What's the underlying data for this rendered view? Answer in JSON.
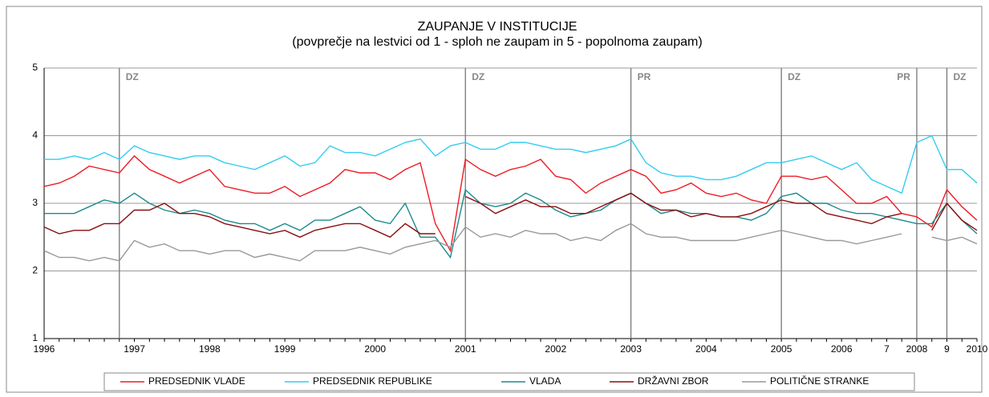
{
  "chart_data": {
    "type": "line",
    "title": "ZAUPANJE V INSTITUCIJE",
    "subtitle": "(povprečje na lestvici od 1 - sploh ne zaupam in 5 - popolnoma zaupam)",
    "categories": [
      "1996",
      null,
      null,
      null,
      null,
      null,
      "1997",
      null,
      null,
      null,
      null,
      "1998",
      null,
      null,
      null,
      null,
      "1999",
      null,
      null,
      null,
      null,
      null,
      "2000",
      null,
      null,
      null,
      null,
      null,
      "2001",
      null,
      null,
      null,
      null,
      null,
      "2002",
      null,
      null,
      null,
      null,
      "2003",
      null,
      null,
      null,
      null,
      "2004",
      null,
      null,
      null,
      null,
      "2005",
      null,
      null,
      null,
      "2006",
      null,
      null,
      "7",
      null,
      "2008",
      null,
      "9",
      null,
      "2010"
    ],
    "series": [
      {
        "name": "PREDSEDNIK VLADE",
        "color": "#ee1c25",
        "values": [
          3.25,
          3.3,
          3.4,
          3.55,
          3.5,
          3.45,
          3.7,
          3.5,
          3.4,
          3.3,
          3.4,
          3.5,
          3.25,
          3.2,
          3.15,
          3.15,
          3.25,
          3.1,
          3.2,
          3.3,
          3.5,
          3.45,
          3.45,
          3.35,
          3.5,
          3.6,
          2.7,
          2.3,
          3.65,
          3.5,
          3.4,
          3.5,
          3.55,
          3.65,
          3.4,
          3.35,
          3.15,
          3.3,
          3.4,
          3.5,
          3.4,
          3.15,
          3.2,
          3.3,
          3.15,
          3.1,
          3.15,
          3.05,
          3.0,
          3.4,
          3.4,
          3.35,
          3.4,
          3.2,
          3.0,
          3.0,
          3.1,
          2.85,
          2.8,
          2.65,
          3.2,
          2.95,
          2.75
        ]
      },
      {
        "name": "PREDSEDNIK REPUBLIKE",
        "color": "#33ccf0",
        "values": [
          3.65,
          3.65,
          3.7,
          3.65,
          3.75,
          3.65,
          3.85,
          3.75,
          3.7,
          3.65,
          3.7,
          3.7,
          3.6,
          3.55,
          3.5,
          3.6,
          3.7,
          3.55,
          3.6,
          3.85,
          3.75,
          3.75,
          3.7,
          3.8,
          3.9,
          3.95,
          3.7,
          3.85,
          3.9,
          3.8,
          3.8,
          3.9,
          3.9,
          3.85,
          3.8,
          3.8,
          3.75,
          3.8,
          3.85,
          3.95,
          3.6,
          3.45,
          3.4,
          3.4,
          3.35,
          3.35,
          3.4,
          3.5,
          3.6,
          3.6,
          3.65,
          3.7,
          3.6,
          3.5,
          3.6,
          3.35,
          3.25,
          3.15,
          3.9,
          4.0,
          3.5,
          3.5,
          3.3
        ]
      },
      {
        "name": "VLADA",
        "color": "#1b8a8c",
        "values": [
          2.85,
          2.85,
          2.85,
          2.95,
          3.05,
          3.0,
          3.15,
          3.0,
          2.9,
          2.85,
          2.9,
          2.85,
          2.75,
          2.7,
          2.7,
          2.6,
          2.7,
          2.6,
          2.75,
          2.75,
          2.85,
          2.95,
          2.75,
          2.7,
          3.0,
          2.5,
          2.5,
          2.2,
          3.2,
          3.0,
          2.95,
          3.0,
          3.15,
          3.05,
          2.9,
          2.8,
          2.85,
          2.9,
          3.05,
          3.15,
          3.0,
          2.85,
          2.9,
          2.85,
          2.85,
          2.8,
          2.8,
          2.75,
          2.85,
          3.1,
          3.15,
          3.0,
          3.0,
          2.9,
          2.85,
          2.85,
          2.8,
          2.75,
          2.7,
          2.7,
          3.0,
          2.75,
          2.55
        ]
      },
      {
        "name": "DRŽAVNI ZBOR",
        "color": "#8b0d0d",
        "values": [
          2.65,
          2.55,
          2.6,
          2.6,
          2.7,
          2.7,
          2.9,
          2.9,
          3.0,
          2.85,
          2.85,
          2.8,
          2.7,
          2.65,
          2.6,
          2.55,
          2.6,
          2.5,
          2.6,
          2.65,
          2.7,
          2.7,
          2.6,
          2.5,
          2.7,
          2.55,
          2.55,
          null,
          3.1,
          3.0,
          2.85,
          2.95,
          3.05,
          2.95,
          2.95,
          2.85,
          2.85,
          2.95,
          3.05,
          3.15,
          3.0,
          2.9,
          2.9,
          2.8,
          2.85,
          2.8,
          2.8,
          2.85,
          2.95,
          3.05,
          3.0,
          3.0,
          2.85,
          2.8,
          2.75,
          2.7,
          2.8,
          2.85,
          null,
          2.6,
          3.0,
          2.75,
          2.6
        ]
      },
      {
        "name": "POLITIČNE STRANKE",
        "color": "#999999",
        "values": [
          2.3,
          2.2,
          2.2,
          2.15,
          2.2,
          2.15,
          2.45,
          2.35,
          2.4,
          2.3,
          2.3,
          2.25,
          2.3,
          2.3,
          2.2,
          2.25,
          2.2,
          2.15,
          2.3,
          2.3,
          2.3,
          2.35,
          2.3,
          2.25,
          2.35,
          2.4,
          2.45,
          2.35,
          2.65,
          2.5,
          2.55,
          2.5,
          2.6,
          2.55,
          2.55,
          2.45,
          2.5,
          2.45,
          2.6,
          2.7,
          2.55,
          2.5,
          2.5,
          2.45,
          2.45,
          2.45,
          2.45,
          2.5,
          2.55,
          2.6,
          2.55,
          2.5,
          2.45,
          2.45,
          2.4,
          2.45,
          2.5,
          2.55,
          null,
          2.5,
          2.45,
          2.5,
          2.4
        ]
      }
    ],
    "annotations": [
      {
        "text": "DZ",
        "index": 5
      },
      {
        "text": "DZ",
        "index": 28
      },
      {
        "text": "PR",
        "index": 39
      },
      {
        "text": "DZ",
        "index": 49
      },
      {
        "text": "PR",
        "index": 58
      },
      {
        "text": "DZ",
        "index": 60
      }
    ],
    "ylim": [
      1,
      5
    ],
    "yticks": [
      1,
      2,
      3,
      4,
      5
    ],
    "grid": true
  }
}
